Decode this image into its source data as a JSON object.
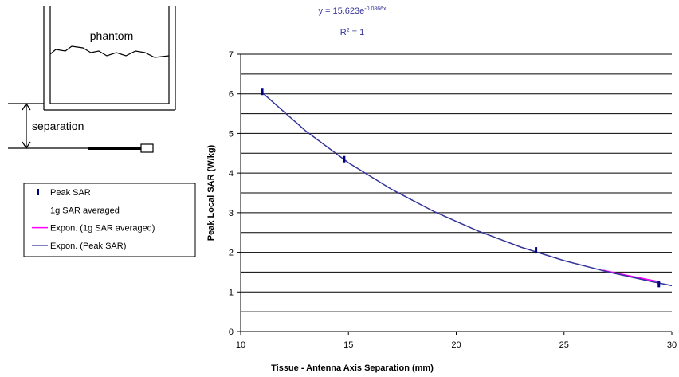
{
  "diagram": {
    "phantom_label": "phantom",
    "separation_label": "separation"
  },
  "chart_data": {
    "type": "scatter",
    "annotation": {
      "equation": "y = 15.623e",
      "equation_exponent": "-0.0866x",
      "r_squared_symbol": "R",
      "r_squared_power": "2",
      "r_squared_value": " = 1"
    },
    "xlabel": "Tissue - Antenna Axis Separation (mm)",
    "ylabel": "Peak Local SAR (W/kg)",
    "xlim": [
      10,
      30
    ],
    "xticks": [
      10,
      15,
      20,
      25,
      30
    ],
    "ylim": [
      0,
      7
    ],
    "yticks": [
      0,
      1,
      2,
      3,
      4,
      5,
      6,
      7
    ],
    "y_gridlines": [
      0.5,
      1,
      1.5,
      2,
      2.5,
      3,
      3.5,
      4,
      4.5,
      5,
      5.5,
      6,
      6.5,
      7
    ],
    "grid": true,
    "legend": "left",
    "series": [
      {
        "name": "Peak SAR",
        "style": "marker",
        "color": "#000080",
        "x": [
          11,
          14.8,
          23.7,
          29.4
        ],
        "values": [
          6.05,
          4.35,
          2.05,
          1.2
        ]
      },
      {
        "name": "1g SAR averaged",
        "style": "none",
        "color": "#000080",
        "x": [],
        "values": []
      },
      {
        "name": "Expon. (1g SAR averaged)",
        "style": "line",
        "color": "#ff00ff",
        "x": [
          26.8,
          28,
          29.4
        ],
        "values": [
          1.55,
          1.41,
          1.26
        ]
      },
      {
        "name": "Expon. (Peak SAR)",
        "style": "line",
        "color": "#333399",
        "x": [
          11,
          13,
          15,
          17,
          19,
          21,
          23,
          25,
          27,
          29,
          30
        ],
        "values": [
          6.03,
          5.07,
          4.26,
          3.59,
          3.02,
          2.54,
          2.13,
          1.79,
          1.51,
          1.27,
          1.16
        ]
      }
    ]
  }
}
